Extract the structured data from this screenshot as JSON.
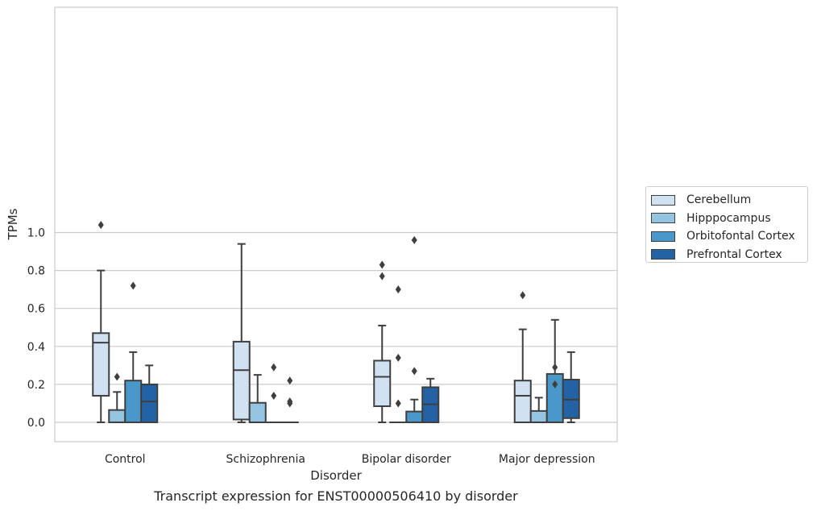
{
  "chart_data": {
    "type": "box",
    "title": "",
    "caption": "Transcript expression for ENST00000506410 by disorder",
    "xlabel": "Disorder",
    "ylabel": "TPMs",
    "ylim": [
      -0.05,
      1.09
    ],
    "yticks": [
      "0.0",
      "0.2",
      "0.4",
      "0.6",
      "0.8",
      "1.0"
    ],
    "grid": true,
    "legend_position": "right",
    "categories": [
      "Control",
      "Schizophrenia",
      "Bipolar disorder",
      "Major depression"
    ],
    "series": [
      {
        "name": "Cerebellum",
        "color": "#d0e1f2",
        "boxes": [
          {
            "whislo": 0.0,
            "q1": 0.14,
            "med": 0.42,
            "q3": 0.47,
            "whishi": 0.8,
            "fliers": [
              1.04
            ]
          },
          {
            "whislo": 0.0,
            "q1": 0.015,
            "med": 0.275,
            "q3": 0.425,
            "whishi": 0.94,
            "fliers": []
          },
          {
            "whislo": 0.0,
            "q1": 0.085,
            "med": 0.24,
            "q3": 0.325,
            "whishi": 0.51,
            "fliers": [
              0.77,
              0.83
            ]
          },
          {
            "whislo": 0.0,
            "q1": 0.0,
            "med": 0.14,
            "q3": 0.22,
            "whishi": 0.49,
            "fliers": [
              0.67
            ]
          }
        ]
      },
      {
        "name": "Hipppocampus",
        "color": "#94c4df",
        "boxes": [
          {
            "whislo": 0.0,
            "q1": 0.0,
            "med": 0.0,
            "q3": 0.065,
            "whishi": 0.16,
            "fliers": [
              0.24
            ]
          },
          {
            "whislo": 0.0,
            "q1": 0.0,
            "med": 0.0,
            "q3": 0.103,
            "whishi": 0.25,
            "fliers": []
          },
          {
            "whislo": 0.0,
            "q1": 0.0,
            "med": 0.0,
            "q3": 0.0,
            "whishi": 0.0,
            "fliers": [
              0.1,
              0.34,
              0.7
            ]
          },
          {
            "whislo": 0.0,
            "q1": 0.0,
            "med": 0.0,
            "q3": 0.06,
            "whishi": 0.13,
            "fliers": []
          }
        ]
      },
      {
        "name": "Orbitofontal Cortex",
        "color": "#4a98c9",
        "boxes": [
          {
            "whislo": 0.0,
            "q1": 0.0,
            "med": 0.0,
            "q3": 0.22,
            "whishi": 0.37,
            "fliers": [
              0.72
            ]
          },
          {
            "whislo": 0.0,
            "q1": 0.0,
            "med": 0.0,
            "q3": 0.0,
            "whishi": 0.0,
            "fliers": [
              0.14,
              0.29
            ]
          },
          {
            "whislo": 0.0,
            "q1": 0.0,
            "med": 0.0,
            "q3": 0.057,
            "whishi": 0.12,
            "fliers": [
              0.27,
              0.96
            ]
          },
          {
            "whislo": 0.0,
            "q1": 0.0,
            "med": 0.0,
            "q3": 0.255,
            "whishi": 0.54,
            "fliers": [
              0.2,
              0.29
            ]
          }
        ]
      },
      {
        "name": "Prefrontal Cortex",
        "color": "#2363a5",
        "boxes": [
          {
            "whislo": 0.0,
            "q1": 0.0,
            "med": 0.11,
            "q3": 0.2,
            "whishi": 0.3,
            "fliers": []
          },
          {
            "whislo": 0.0,
            "q1": 0.0,
            "med": 0.0,
            "q3": 0.0,
            "whishi": 0.0,
            "fliers": [
              0.1,
              0.11,
              0.22
            ]
          },
          {
            "whislo": 0.0,
            "q1": 0.0,
            "med": 0.095,
            "q3": 0.185,
            "whishi": 0.23,
            "fliers": []
          },
          {
            "whislo": 0.0,
            "q1": 0.022,
            "med": 0.12,
            "q3": 0.225,
            "whishi": 0.37,
            "fliers": []
          }
        ]
      }
    ]
  }
}
